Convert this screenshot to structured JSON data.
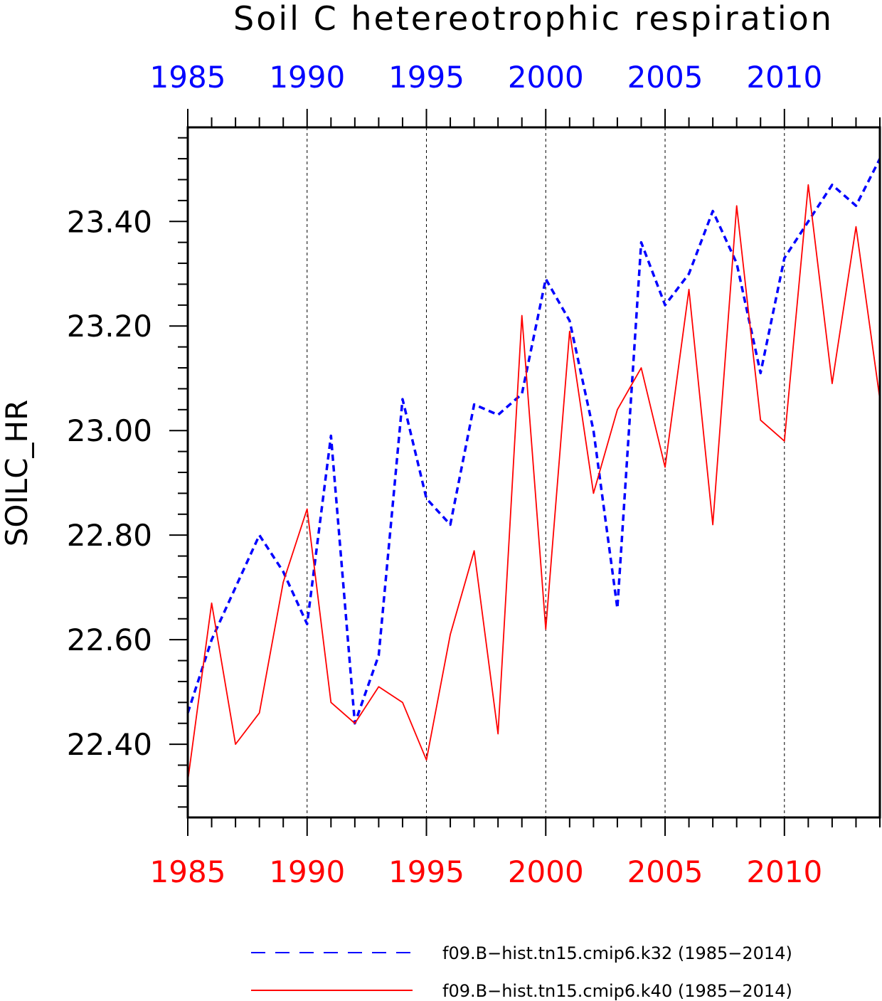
{
  "chart_data": {
    "type": "line",
    "title": "Soil C hetereotrophic respiration",
    "ylabel": "SOILC_HR",
    "xlabel": "",
    "xlim": [
      1985,
      2014
    ],
    "ylim": [
      22.26,
      23.58
    ],
    "x_ticks": [
      1985,
      1990,
      1995,
      2000,
      2005,
      2010
    ],
    "x_tick_labels": [
      "1985",
      "1990",
      "1995",
      "2000",
      "2005",
      "2010"
    ],
    "y_ticks": [
      22.4,
      22.6,
      22.8,
      23.0,
      23.2,
      23.4
    ],
    "y_tick_labels": [
      "22.40",
      "22.60",
      "22.80",
      "23.00",
      "23.20",
      "23.40"
    ],
    "top_axis_color": "#0000ff",
    "bottom_axis_color": "#ff0000",
    "grid": "vertical dashed lines at major x ticks",
    "legend_position": "bottom",
    "x": [
      1985,
      1986,
      1987,
      1988,
      1989,
      1990,
      1991,
      1992,
      1993,
      1994,
      1995,
      1996,
      1997,
      1998,
      1999,
      2000,
      2001,
      2002,
      2003,
      2004,
      2005,
      2006,
      2007,
      2008,
      2009,
      2010,
      2011,
      2012,
      2013,
      2014
    ],
    "series": [
      {
        "name": "f09.B−hist.tn15.cmip6.k32 (1985−2014)",
        "color": "#0000ff",
        "style": "dashed",
        "values": [
          22.46,
          22.6,
          22.7,
          22.8,
          22.73,
          22.63,
          22.99,
          22.44,
          22.57,
          23.06,
          22.87,
          22.82,
          23.05,
          23.03,
          23.07,
          23.29,
          23.21,
          23.0,
          22.66,
          23.36,
          23.24,
          23.3,
          23.42,
          23.32,
          23.11,
          23.33,
          23.4,
          23.47,
          23.43,
          23.52
        ]
      },
      {
        "name": "f09.B−hist.tn15.cmip6.k40 (1985−2014)",
        "color": "#ff0000",
        "style": "solid",
        "values": [
          22.33,
          22.67,
          22.4,
          22.46,
          22.71,
          22.85,
          22.48,
          22.44,
          22.51,
          22.48,
          22.37,
          22.61,
          22.77,
          22.42,
          23.22,
          22.62,
          23.19,
          22.88,
          23.04,
          23.12,
          22.93,
          23.27,
          22.82,
          23.43,
          23.02,
          22.98,
          23.47,
          23.09,
          23.39,
          23.06
        ]
      }
    ]
  }
}
